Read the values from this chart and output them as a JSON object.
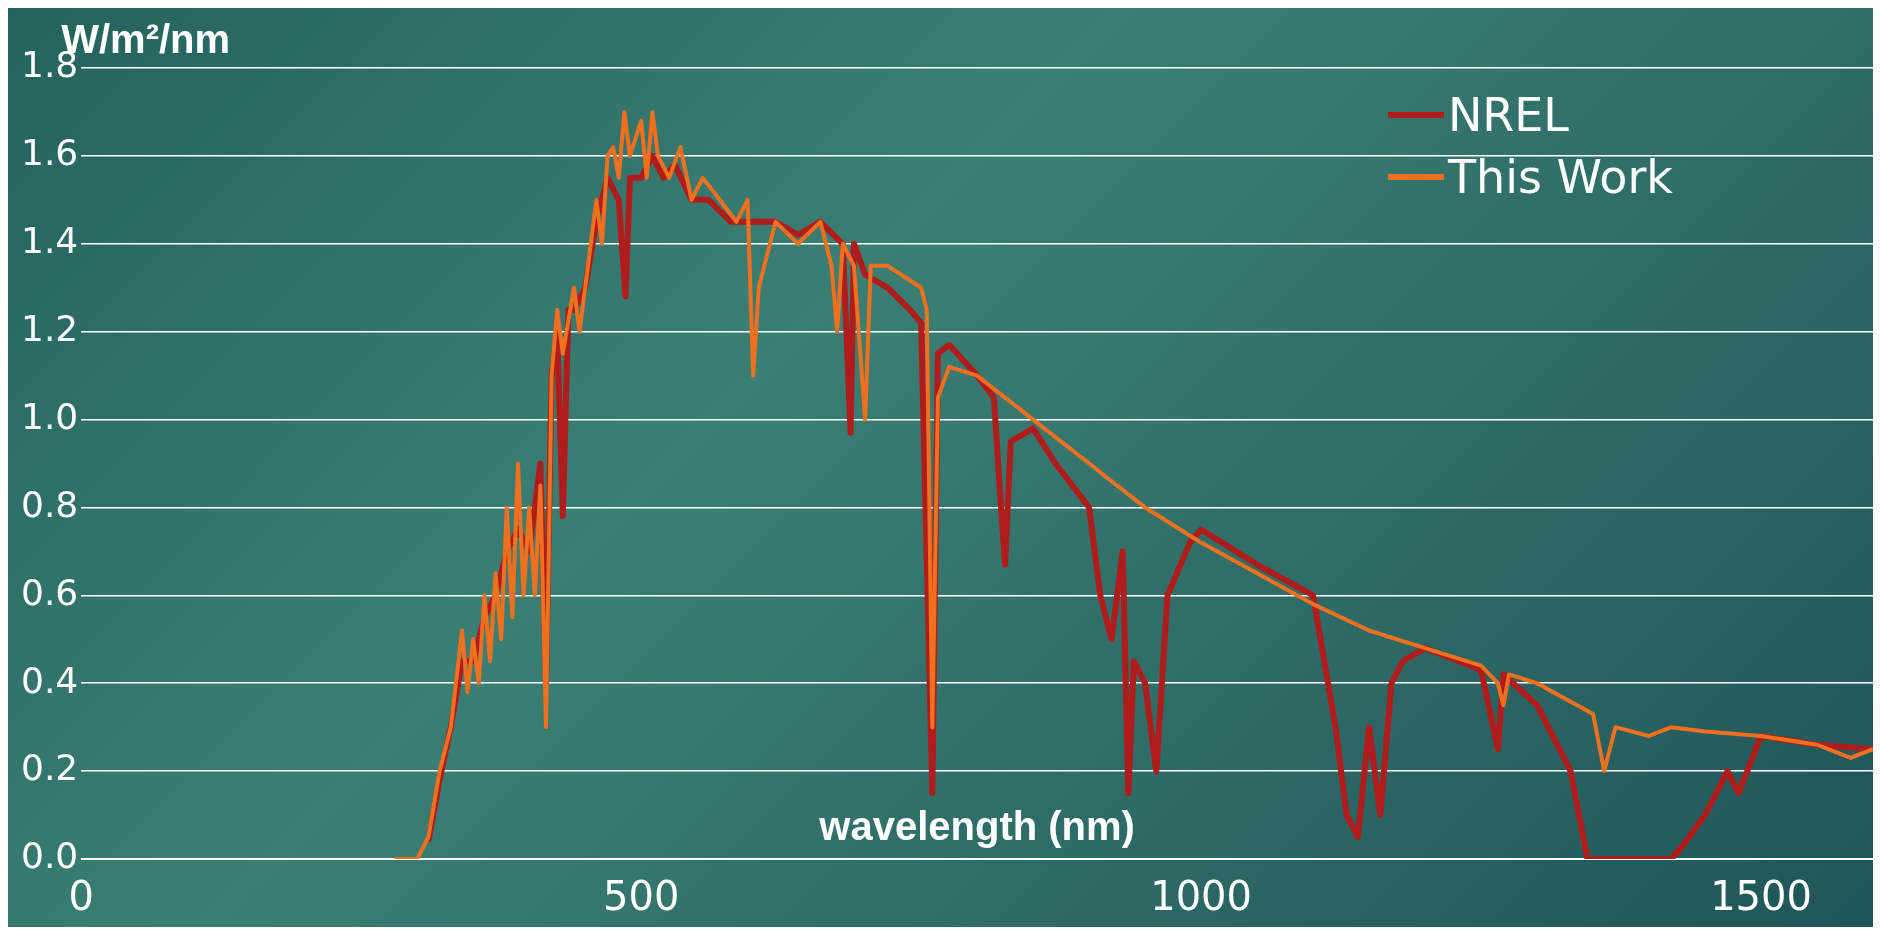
{
  "chart_data": {
    "type": "line",
    "xlabel": "wavelength (nm)",
    "ylabel": "W/m²/nm",
    "xlim": [
      0,
      1600
    ],
    "xticks": [
      0,
      500,
      1000,
      1500
    ],
    "ylim": [
      0,
      1.8
    ],
    "yticks": [
      {
        "value": 0,
        "label": "0.0"
      },
      {
        "value": 0.2,
        "label": "0.2"
      },
      {
        "value": 0.4,
        "label": "0.4"
      },
      {
        "value": 0.6,
        "label": "0.6"
      },
      {
        "value": 0.8,
        "label": "0.8"
      },
      {
        "value": 1,
        "label": "1.0"
      },
      {
        "value": 1.2,
        "label": "1.2"
      },
      {
        "value": 1.4,
        "label": "1.4"
      },
      {
        "value": 1.6,
        "label": "1.6"
      },
      {
        "value": 1.8,
        "label": "1.8"
      }
    ],
    "grid": "y",
    "legend": "top right",
    "marker": "none",
    "line_style": "solid",
    "series": [
      {
        "name": "NREL",
        "color": "#b01c1c",
        "x": [
          310,
          320,
          330,
          340,
          350,
          360,
          370,
          380,
          390,
          400,
          410,
          415,
          420,
          425,
          430,
          435,
          440,
          450,
          460,
          470,
          480,
          486,
          490,
          500,
          510,
          520,
          530,
          545,
          560,
          580,
          600,
          620,
          640,
          660,
          680,
          687,
          690,
          700,
          720,
          740,
          750,
          760,
          765,
          775,
          800,
          815,
          820,
          825,
          830,
          850,
          870,
          900,
          910,
          920,
          930,
          935,
          940,
          950,
          960,
          970,
          990,
          1000,
          1050,
          1100,
          1110,
          1120,
          1130,
          1140,
          1150,
          1160,
          1170,
          1180,
          1200,
          1250,
          1265,
          1270,
          1300,
          1320,
          1330,
          1345,
          1380,
          1420,
          1430,
          1450,
          1460,
          1470,
          1480,
          1500,
          1550,
          1600
        ],
        "values": [
          0.04,
          0.18,
          0.3,
          0.45,
          0.45,
          0.55,
          0.6,
          0.7,
          0.75,
          0.7,
          0.9,
          0.4,
          1.1,
          1.2,
          0.78,
          1.25,
          1.25,
          1.3,
          1.45,
          1.55,
          1.5,
          1.28,
          1.55,
          1.55,
          1.6,
          1.55,
          1.58,
          1.5,
          1.5,
          1.45,
          1.45,
          1.45,
          1.42,
          1.45,
          1.4,
          0.97,
          1.4,
          1.33,
          1.3,
          1.25,
          1.22,
          0.15,
          1.15,
          1.17,
          1.1,
          1.05,
          0.85,
          0.67,
          0.95,
          0.98,
          0.9,
          0.8,
          0.6,
          0.5,
          0.7,
          0.15,
          0.45,
          0.4,
          0.2,
          0.6,
          0.72,
          0.75,
          0.67,
          0.6,
          0.45,
          0.3,
          0.1,
          0.05,
          0.3,
          0.1,
          0.4,
          0.45,
          0.48,
          0.43,
          0.25,
          0.42,
          0.35,
          0.25,
          0.2,
          0,
          0,
          0,
          0.03,
          0.1,
          0.15,
          0.2,
          0.15,
          0.28,
          0.26,
          0.25
        ]
      },
      {
        "name": "This Work",
        "color": "#f07020",
        "x": [
          280,
          300,
          310,
          320,
          330,
          340,
          345,
          350,
          355,
          360,
          365,
          370,
          375,
          380,
          385,
          390,
          395,
          400,
          405,
          410,
          415,
          420,
          425,
          430,
          440,
          445,
          450,
          460,
          465,
          470,
          475,
          480,
          485,
          490,
          500,
          505,
          510,
          515,
          525,
          535,
          545,
          555,
          570,
          585,
          595,
          600,
          605,
          620,
          640,
          660,
          670,
          675,
          680,
          690,
          700,
          705,
          720,
          750,
          755,
          760,
          765,
          775,
          800,
          850,
          900,
          925,
          950,
          1000,
          1050,
          1100,
          1150,
          1200,
          1250,
          1265,
          1270,
          1275,
          1300,
          1350,
          1360,
          1370,
          1400,
          1420,
          1450,
          1500,
          1550,
          1580,
          1600
        ],
        "values": [
          0,
          0,
          0.05,
          0.2,
          0.3,
          0.52,
          0.38,
          0.5,
          0.4,
          0.6,
          0.45,
          0.65,
          0.5,
          0.8,
          0.55,
          0.9,
          0.6,
          0.8,
          0.6,
          0.85,
          0.3,
          1.1,
          1.25,
          1.15,
          1.3,
          1.2,
          1.3,
          1.5,
          1.4,
          1.6,
          1.62,
          1.55,
          1.7,
          1.6,
          1.68,
          1.55,
          1.7,
          1.6,
          1.55,
          1.62,
          1.5,
          1.55,
          1.5,
          1.45,
          1.5,
          1.1,
          1.3,
          1.45,
          1.4,
          1.45,
          1.35,
          1.2,
          1.4,
          1.35,
          1.0,
          1.35,
          1.35,
          1.3,
          1.25,
          0.3,
          1.05,
          1.12,
          1.1,
          1.0,
          0.9,
          0.85,
          0.8,
          0.72,
          0.65,
          0.58,
          0.52,
          0.48,
          0.44,
          0.4,
          0.35,
          0.42,
          0.4,
          0.33,
          0.2,
          0.3,
          0.28,
          0.3,
          0.29,
          0.28,
          0.26,
          0.23,
          0.25
        ]
      }
    ]
  }
}
